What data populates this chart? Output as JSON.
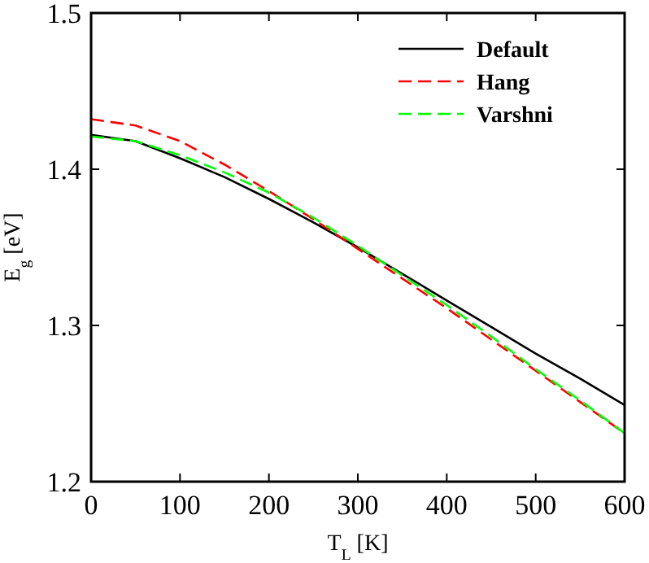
{
  "chart_data": {
    "type": "line",
    "xlabel": "T$_{L}$ [K]",
    "ylabel": "E$_{g}$ [eV]",
    "x": [
      0,
      50,
      100,
      150,
      200,
      250,
      300,
      350,
      400,
      450,
      500,
      550,
      600
    ],
    "xlim": [
      0,
      600
    ],
    "ylim": [
      1.2,
      1.5
    ],
    "xticks": [
      0,
      100,
      200,
      300,
      400,
      500,
      600
    ],
    "yticks": [
      1.2,
      1.3,
      1.4,
      1.5
    ],
    "legend": "top right",
    "grid": false,
    "marker": "none",
    "series": [
      {
        "name": "Default",
        "color": "#000000",
        "line_style": "solid",
        "values": [
          1.422,
          1.418,
          1.407,
          1.395,
          1.381,
          1.366,
          1.35,
          1.333,
          1.316,
          1.299,
          1.282,
          1.266,
          1.249
        ]
      },
      {
        "name": "Hang",
        "color": "#ff0000",
        "line_style": "dashed",
        "values": [
          1.432,
          1.428,
          1.418,
          1.403,
          1.386,
          1.368,
          1.349,
          1.33,
          1.311,
          1.291,
          1.271,
          1.251,
          1.231
        ]
      },
      {
        "name": "Varshni",
        "color": "#00ff00",
        "line_style": "dashed",
        "values": [
          1.421,
          1.418,
          1.409,
          1.398,
          1.385,
          1.369,
          1.351,
          1.332,
          1.313,
          1.293,
          1.272,
          1.252,
          1.231
        ]
      }
    ]
  }
}
